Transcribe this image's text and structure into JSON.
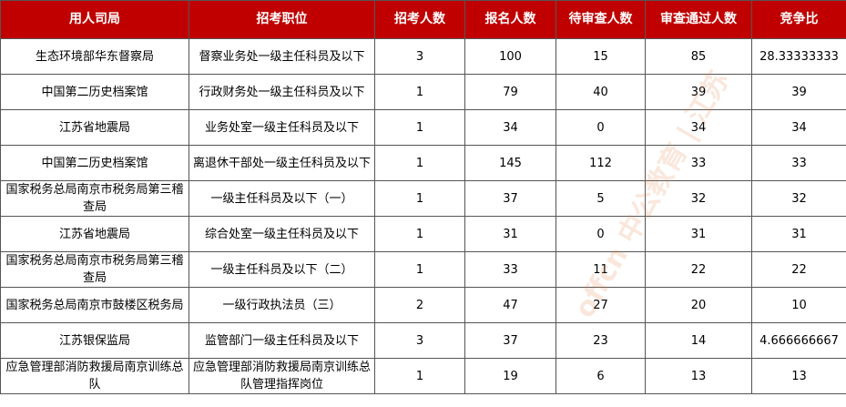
{
  "table": {
    "header": [
      "用人司局",
      "招考职位",
      "招考人数",
      "报名人数",
      "待审查人数",
      "审查通过人数",
      "竞争比"
    ],
    "rows": [
      [
        "生态环境部华东督察局",
        "督察业务处一级主任科员及以下",
        3,
        100,
        15,
        85,
        28.33333333
      ],
      [
        "中国第二历史档案馆",
        "行政财务处一级主任科员及以下",
        1,
        79,
        40,
        39,
        39
      ],
      [
        "江苏省地震局",
        "业务处室一级主任科员及以下",
        1,
        34,
        0,
        34,
        34
      ],
      [
        "中国第二历史档案馆",
        "离退休干部处一级主任科员及以下",
        1,
        145,
        112,
        33,
        33
      ],
      [
        "国家税务总局南京市税务局第三稽查局",
        "一级主任科员及以下（一）",
        1,
        37,
        5,
        32,
        32
      ],
      [
        "江苏省地震局",
        "综合处室一级主任科员及以下",
        1,
        31,
        0,
        31,
        31
      ],
      [
        "国家税务总局南京市税务局第三稽查局",
        "一级主任科员及以下（二）",
        1,
        33,
        11,
        22,
        22
      ],
      [
        "国家税务总局南京市鼓楼区税务局",
        "一级行政执法员（三）",
        2,
        47,
        27,
        20,
        10
      ],
      [
        "江苏银保监局",
        "监管部门一级主任科员及以下",
        3,
        37,
        23,
        14,
        4.666666667
      ],
      [
        "应急管理部消防救援局南京训练总队",
        "应急管理部消防救援局南京训练总队管理指挥岗位",
        1,
        19,
        6,
        13,
        13
      ]
    ]
  },
  "watermark": "offcn 中公教育 | 江苏"
}
